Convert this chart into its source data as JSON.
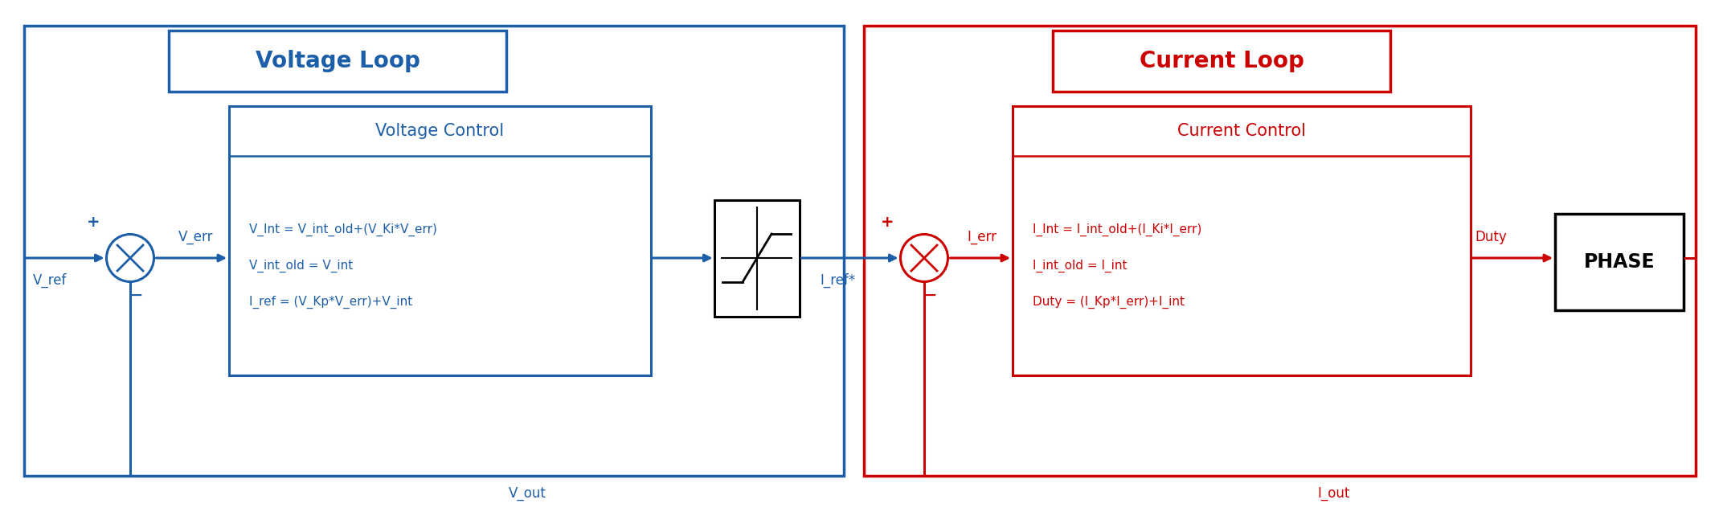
{
  "blue": "#1C5FA8",
  "red": "#CC0000",
  "black": "#000000",
  "white": "#FFFFFF",
  "bg": "#FFFFFF",
  "lw": 2.2,
  "figsize": [
    21.44,
    6.42
  ],
  "dpi": 100,
  "voltage_loop_label": "Voltage Loop",
  "current_loop_label": "Current Loop",
  "voltage_control_label": "Voltage Control",
  "current_control_label": "Current Control",
  "phase_label": "PHASE",
  "vc_line1": "V_Int = V_int_old+(V_Ki*V_err)",
  "vc_line2": "V_int_old = V_int",
  "vc_line3": "I_ref = (V_Kp*V_err)+V_int",
  "cc_line1": "I_Int = I_int_old+(I_Ki*I_err)",
  "cc_line2": "I_int_old = I_int",
  "cc_line3": "Duty = (I_Kp*I_err)+I_int",
  "lbl_vref": "V_ref",
  "lbl_verr": "V_err",
  "lbl_irefstar": "I_ref*",
  "lbl_ierr": "I_err",
  "lbl_duty": "Duty",
  "lbl_vout": "V_out",
  "lbl_iout": "I_out",
  "plus": "+",
  "minus": "−",
  "sat_symbol_color": "#000000"
}
